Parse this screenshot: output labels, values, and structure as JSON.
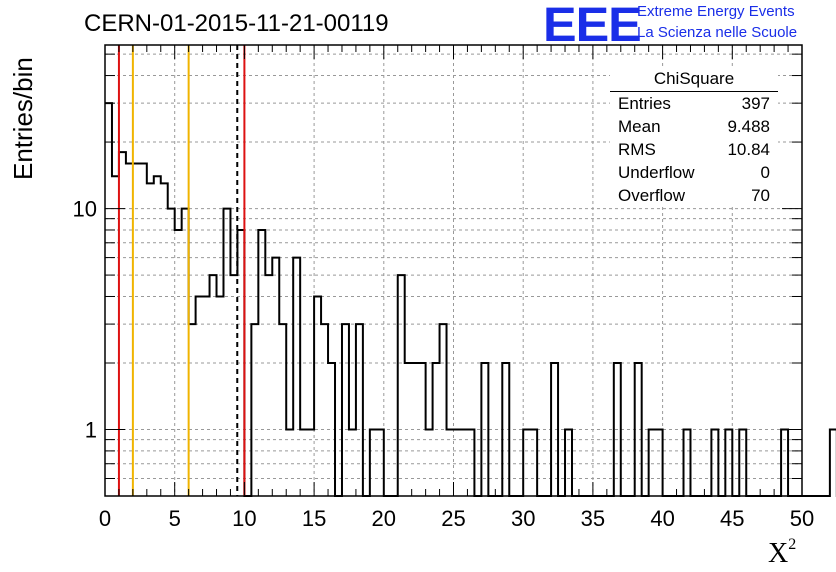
{
  "title": "CERN-01-2015-11-21-00119",
  "logo": {
    "mark": "EEE",
    "line1": "Extreme Energy Events",
    "line2": "La Scienza nelle Scuole",
    "color": "#1a2ee8"
  },
  "stats_box": {
    "title": "ChiSquare",
    "rows": [
      {
        "label": "Entries",
        "value": "397"
      },
      {
        "label": "Mean",
        "value": "9.488"
      },
      {
        "label": "RMS",
        "value": "10.84"
      },
      {
        "label": "Underflow",
        "value": "0"
      },
      {
        "label": "Overflow",
        "value": "70"
      }
    ]
  },
  "chart_data": {
    "type": "histogram",
    "xlabel": "X",
    "xlabel_superscript": "2",
    "ylabel": "Entries/bin",
    "xlim": [
      0,
      50
    ],
    "ylim": [
      0.5,
      55
    ],
    "yscale": "log",
    "grid": true,
    "bin_width": 0.5,
    "x_ticks": [
      "0",
      "5",
      "10",
      "15",
      "20",
      "25",
      "30",
      "35",
      "40",
      "45",
      "50"
    ],
    "y_ticks": [
      {
        "value": 1,
        "label": "1"
      },
      {
        "value": 10,
        "label": "10"
      }
    ],
    "counts": [
      30,
      14,
      18,
      16,
      16,
      16,
      13,
      14,
      13,
      10,
      8,
      10,
      3,
      4,
      4,
      5,
      4,
      10,
      5,
      8,
      0,
      3,
      8,
      5,
      6,
      3,
      1,
      6,
      1,
      1,
      4,
      3,
      2,
      0,
      3,
      1,
      3,
      0,
      1,
      1,
      0,
      0,
      5,
      2,
      2,
      2,
      1,
      2,
      3,
      1,
      1,
      1,
      1,
      0,
      2,
      0,
      0,
      2,
      0,
      0,
      1,
      1,
      0,
      0,
      2,
      0,
      1,
      0,
      0,
      0,
      0,
      0,
      0,
      2,
      0,
      0,
      2,
      0,
      1,
      1,
      0,
      0,
      0,
      1,
      0,
      0,
      0,
      1,
      0,
      1,
      0,
      1,
      0,
      0,
      0,
      0,
      0,
      1,
      0,
      0,
      0,
      0,
      0,
      0,
      1,
      0,
      0,
      0,
      0,
      0,
      0,
      0,
      0,
      0,
      0,
      0,
      0,
      0,
      0,
      0,
      0,
      0,
      0,
      0,
      0,
      0,
      0,
      0,
      0,
      0,
      0,
      0,
      0,
      0,
      0,
      0,
      0,
      0,
      0,
      0,
      0,
      0,
      0,
      0,
      0,
      0,
      0,
      0,
      0,
      0
    ],
    "vlines": [
      {
        "x": 1.0,
        "color": "#dd1111",
        "style": "solid"
      },
      {
        "x": 2.0,
        "color": "#f0b400",
        "style": "solid"
      },
      {
        "x": 6.0,
        "color": "#f0b400",
        "style": "solid"
      },
      {
        "x": 9.488,
        "color": "#000000",
        "style": "dashed"
      },
      {
        "x": 10.0,
        "color": "#dd1111",
        "style": "solid"
      }
    ]
  }
}
